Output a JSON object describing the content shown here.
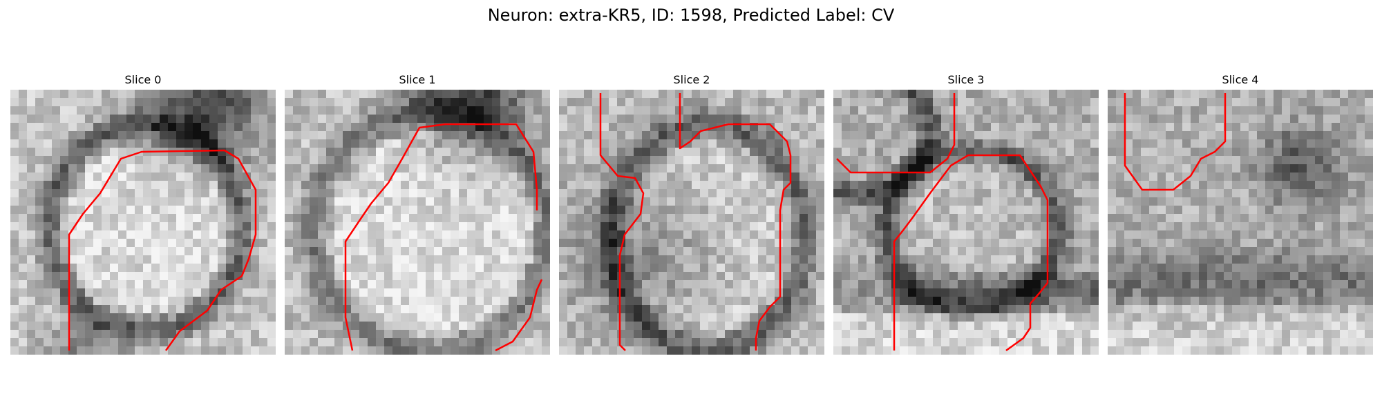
{
  "figure": {
    "title": "Neuron: extra-KR5, ID: 1598, Predicted Label: CV"
  },
  "colors": {
    "contour": "#ff0000",
    "background": "#ffffff"
  },
  "panels": [
    {
      "title": "Slice 0"
    },
    {
      "title": "Slice 1"
    },
    {
      "title": "Slice 2"
    },
    {
      "title": "Slice 3"
    },
    {
      "title": "Slice 4"
    }
  ]
}
